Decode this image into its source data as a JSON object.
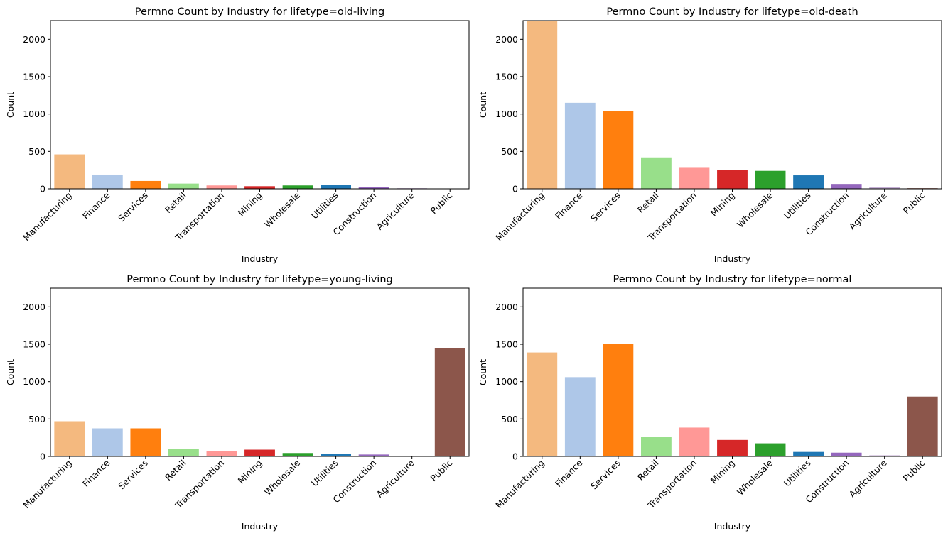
{
  "chart_data": [
    {
      "type": "bar",
      "title": "Permno Count by Industry for lifetype=old-living",
      "xlabel": "Industry",
      "ylabel": "Count",
      "ylim": [
        0,
        2250
      ],
      "yticks": [
        0,
        500,
        1000,
        1500,
        2000
      ],
      "categories": [
        "Manufacturing",
        "Finance",
        "Services",
        "Retail",
        "Transportation",
        "Mining",
        "Wholesale",
        "Utilities",
        "Construction",
        "Agriculture",
        "Public"
      ],
      "values": [
        460,
        190,
        105,
        70,
        45,
        35,
        45,
        55,
        20,
        8,
        0
      ],
      "colors": [
        "#f4b97f",
        "#aec7e8",
        "#ff7f0e",
        "#98df8a",
        "#ff9896",
        "#d62728",
        "#2ca02c",
        "#1f77b4",
        "#9467bd",
        "#c5b0d5",
        "#8c564b"
      ]
    },
    {
      "type": "bar",
      "title": "Permno Count by Industry for lifetype=old-death",
      "xlabel": "Industry",
      "ylabel": "Count",
      "ylim": [
        0,
        2250
      ],
      "yticks": [
        0,
        500,
        1000,
        1500,
        2000
      ],
      "categories": [
        "Manufacturing",
        "Finance",
        "Services",
        "Retail",
        "Transportation",
        "Mining",
        "Wholesale",
        "Utilities",
        "Construction",
        "Agriculture",
        "Public"
      ],
      "values": [
        2250,
        1150,
        1040,
        420,
        290,
        250,
        240,
        180,
        65,
        20,
        8
      ],
      "colors": [
        "#f4b97f",
        "#aec7e8",
        "#ff7f0e",
        "#98df8a",
        "#ff9896",
        "#d62728",
        "#2ca02c",
        "#1f77b4",
        "#9467bd",
        "#c5b0d5",
        "#8c564b"
      ]
    },
    {
      "type": "bar",
      "title": "Permno Count by Industry for lifetype=young-living",
      "xlabel": "Industry",
      "ylabel": "Count",
      "ylim": [
        0,
        2250
      ],
      "yticks": [
        0,
        500,
        1000,
        1500,
        2000
      ],
      "categories": [
        "Manufacturing",
        "Finance",
        "Services",
        "Retail",
        "Transportation",
        "Mining",
        "Wholesale",
        "Utilities",
        "Construction",
        "Agriculture",
        "Public"
      ],
      "values": [
        470,
        375,
        375,
        100,
        70,
        90,
        45,
        30,
        25,
        5,
        1450
      ],
      "colors": [
        "#f4b97f",
        "#aec7e8",
        "#ff7f0e",
        "#98df8a",
        "#ff9896",
        "#d62728",
        "#2ca02c",
        "#1f77b4",
        "#9467bd",
        "#c5b0d5",
        "#8c564b"
      ]
    },
    {
      "type": "bar",
      "title": "Permno Count by Industry for lifetype=normal",
      "xlabel": "Industry",
      "ylabel": "Count",
      "ylim": [
        0,
        2250
      ],
      "yticks": [
        0,
        500,
        1000,
        1500,
        2000
      ],
      "categories": [
        "Manufacturing",
        "Finance",
        "Services",
        "Retail",
        "Transportation",
        "Mining",
        "Wholesale",
        "Utilities",
        "Construction",
        "Agriculture",
        "Public"
      ],
      "values": [
        1390,
        1060,
        1500,
        260,
        385,
        220,
        175,
        60,
        50,
        15,
        800
      ],
      "colors": [
        "#f4b97f",
        "#aec7e8",
        "#ff7f0e",
        "#98df8a",
        "#ff9896",
        "#d62728",
        "#2ca02c",
        "#1f77b4",
        "#9467bd",
        "#c5b0d5",
        "#8c564b"
      ]
    }
  ]
}
